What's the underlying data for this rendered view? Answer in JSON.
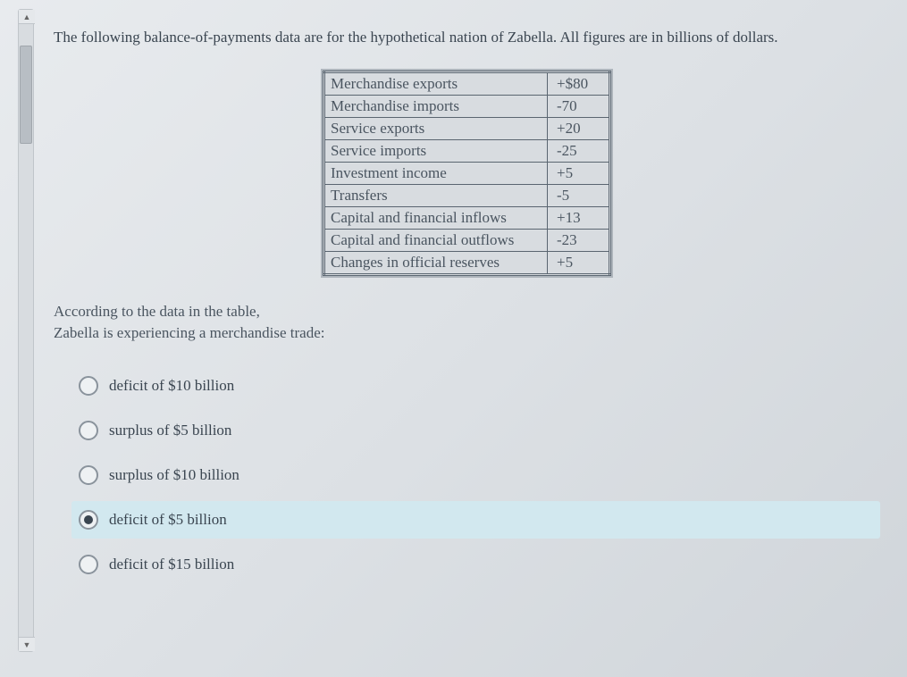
{
  "prompt": "The following balance-of-payments data are for the hypothetical nation of Zabella. All figures are in billions of dollars.",
  "table": {
    "rows": [
      {
        "label": "Merchandise exports",
        "value": "+$80"
      },
      {
        "label": "Merchandise imports",
        "value": "-70"
      },
      {
        "label": "Service exports",
        "value": "+20"
      },
      {
        "label": "Service imports",
        "value": "-25"
      },
      {
        "label": "Investment income",
        "value": "+5"
      },
      {
        "label": "Transfers",
        "value": "-5"
      },
      {
        "label": "Capital and financial inflows",
        "value": "+13"
      },
      {
        "label": "Capital and financial outflows",
        "value": "-23"
      },
      {
        "label": "Changes in official reserves",
        "value": "+5"
      }
    ]
  },
  "question_lead_line1": "According to the data in the table,",
  "question_lead_line2": "Zabella is experiencing a merchandise trade:",
  "options": [
    {
      "label": "deficit of $10 billion",
      "selected": false
    },
    {
      "label": "surplus of $5 billion",
      "selected": false
    },
    {
      "label": "surplus of $10 billion",
      "selected": false
    },
    {
      "label": "deficit of $5 billion",
      "selected": true
    },
    {
      "label": "deficit of $15 billion",
      "selected": false
    }
  ],
  "colors": {
    "bg_gradient_start": "#e8ebee",
    "bg_gradient_end": "#d0d5da",
    "text": "#3a4550",
    "table_border": "#5a6570",
    "selected_bg": "#d2e8ef",
    "radio_border": "#8a939c"
  }
}
